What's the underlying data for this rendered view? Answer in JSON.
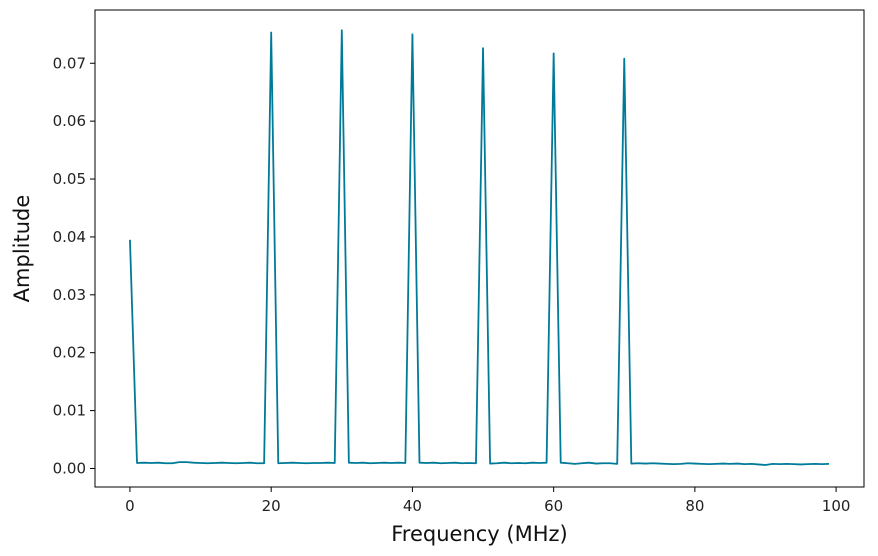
{
  "chart_data": {
    "type": "line",
    "title": "",
    "xlabel": "Frequency (MHz)",
    "ylabel": "Amplitude",
    "xlim": [
      -4.95,
      103.95
    ],
    "ylim": [
      -0.0032,
      0.0792
    ],
    "xticks": [
      0,
      20,
      40,
      60,
      80,
      100
    ],
    "xtick_labels": [
      "0",
      "20",
      "40",
      "60",
      "80",
      "100"
    ],
    "yticks": [
      0.0,
      0.01,
      0.02,
      0.03,
      0.04,
      0.05,
      0.06,
      0.07
    ],
    "ytick_labels": [
      "0.00",
      "0.01",
      "0.02",
      "0.03",
      "0.04",
      "0.05",
      "0.06",
      "0.07"
    ],
    "grid": false,
    "line_color": "#007a99",
    "series": [
      {
        "x": [
          0,
          1,
          2,
          3,
          4,
          5,
          6,
          7,
          8,
          9,
          10,
          11,
          12,
          13,
          14,
          15,
          16,
          17,
          18,
          19,
          20,
          21,
          22,
          23,
          24,
          25,
          26,
          27,
          28,
          29,
          30,
          31,
          32,
          33,
          34,
          35,
          36,
          37,
          38,
          39,
          40,
          41,
          42,
          43,
          44,
          45,
          46,
          47,
          48,
          49,
          50,
          51,
          52,
          53,
          54,
          55,
          56,
          57,
          58,
          59,
          60,
          61,
          62,
          63,
          64,
          65,
          66,
          67,
          68,
          69,
          70,
          71,
          72,
          73,
          74,
          75,
          76,
          77,
          78,
          79,
          80,
          81,
          82,
          83,
          84,
          85,
          86,
          87,
          88,
          89,
          90,
          91,
          92,
          93,
          94,
          95,
          96,
          97,
          98,
          99
        ],
        "y": [
          0.0395,
          0.00095,
          0.001,
          0.00095,
          0.001,
          0.0009,
          0.0009,
          0.0011,
          0.0011,
          0.001,
          0.00095,
          0.0009,
          0.00095,
          0.001,
          0.00095,
          0.0009,
          0.00095,
          0.001,
          0.0009,
          0.0009,
          0.0753,
          0.0009,
          0.00095,
          0.001,
          0.00095,
          0.0009,
          0.00095,
          0.00095,
          0.001,
          0.00095,
          0.0757,
          0.001,
          0.00095,
          0.001,
          0.0009,
          0.00095,
          0.001,
          0.00095,
          0.001,
          0.00095,
          0.075,
          0.001,
          0.00095,
          0.001,
          0.0009,
          0.00095,
          0.001,
          0.0009,
          0.00095,
          0.0009,
          0.0726,
          0.00085,
          0.0009,
          0.001,
          0.0009,
          0.00095,
          0.0009,
          0.001,
          0.00095,
          0.001,
          0.0717,
          0.001,
          0.0009,
          0.0008,
          0.0009,
          0.001,
          0.00085,
          0.0009,
          0.0009,
          0.0008,
          0.0708,
          0.00085,
          0.0009,
          0.00085,
          0.0009,
          0.00085,
          0.0008,
          0.00075,
          0.0008,
          0.0009,
          0.00085,
          0.0008,
          0.00075,
          0.0008,
          0.00085,
          0.0008,
          0.00085,
          0.00075,
          0.0008,
          0.0007,
          0.0006,
          0.0008,
          0.00075,
          0.0008,
          0.00075,
          0.0007,
          0.00075,
          0.0008,
          0.00075,
          0.0008
        ]
      }
    ]
  }
}
